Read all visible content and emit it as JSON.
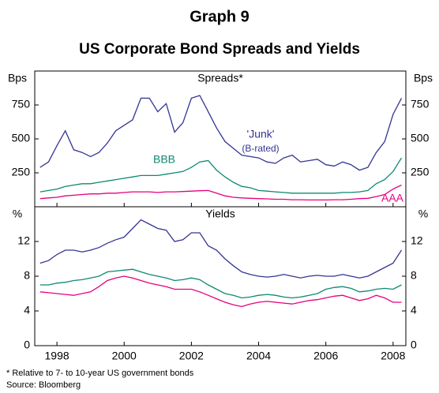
{
  "title": "Graph 9",
  "subtitle": "US Corporate Bond Spreads and Yields",
  "footnotes": [
    "* Relative to 7- to 10-year US government bonds",
    "Source: Bloomberg"
  ],
  "chart_data": [
    {
      "type": "line",
      "title": "Spreads*",
      "y_label": "Bps",
      "x": [
        1997.5,
        1997.75,
        1998,
        1998.25,
        1998.5,
        1998.75,
        1999,
        1999.25,
        1999.5,
        1999.75,
        2000,
        2000.25,
        2000.5,
        2000.75,
        2001,
        2001.25,
        2001.5,
        2001.75,
        2002,
        2002.25,
        2002.5,
        2002.75,
        2003,
        2003.25,
        2003.5,
        2003.75,
        2004,
        2004.25,
        2004.5,
        2004.75,
        2005,
        2005.25,
        2005.5,
        2005.75,
        2006,
        2006.25,
        2006.5,
        2006.75,
        2007,
        2007.25,
        2007.5,
        2007.75,
        2008,
        2008.25
      ],
      "xlim": [
        1997.34,
        2008.38
      ],
      "xticks": [
        1998,
        2000,
        2002,
        2004,
        2006,
        2008
      ],
      "ylim": [
        0,
        1000
      ],
      "yticks": [
        250,
        500,
        750
      ],
      "grid": false,
      "annotations": [
        "'Junk'",
        "(B-rated)",
        "BBB",
        "AAA"
      ],
      "series": [
        {
          "name": "'Junk'",
          "color": "#343494",
          "values": [
            290,
            330,
            450,
            560,
            420,
            400,
            370,
            400,
            470,
            560,
            600,
            640,
            800,
            800,
            700,
            760,
            550,
            620,
            800,
            820,
            700,
            580,
            480,
            430,
            380,
            370,
            360,
            330,
            320,
            360,
            380,
            330,
            340,
            350,
            310,
            300,
            330,
            310,
            270,
            290,
            400,
            480,
            680,
            800
          ]
        },
        {
          "name": "BBB",
          "color": "#0e8a70",
          "values": [
            110,
            120,
            130,
            150,
            160,
            170,
            170,
            180,
            190,
            200,
            210,
            220,
            230,
            230,
            230,
            240,
            250,
            260,
            290,
            330,
            340,
            270,
            220,
            180,
            150,
            140,
            120,
            115,
            110,
            105,
            100,
            100,
            100,
            100,
            100,
            100,
            105,
            105,
            110,
            120,
            170,
            200,
            260,
            360
          ]
        },
        {
          "name": "AAA",
          "color": "#e6007e",
          "values": [
            60,
            65,
            70,
            80,
            85,
            90,
            95,
            95,
            100,
            100,
            105,
            110,
            110,
            110,
            105,
            110,
            110,
            112,
            115,
            118,
            120,
            100,
            80,
            70,
            65,
            62,
            60,
            58,
            55,
            55,
            52,
            52,
            50,
            50,
            50,
            52,
            52,
            55,
            60,
            62,
            75,
            90,
            130,
            160
          ]
        }
      ]
    },
    {
      "type": "line",
      "title": "Yields",
      "y_label": "%",
      "x": [
        1997.5,
        1997.75,
        1998,
        1998.25,
        1998.5,
        1998.75,
        1999,
        1999.25,
        1999.5,
        1999.75,
        2000,
        2000.25,
        2000.5,
        2000.75,
        2001,
        2001.25,
        2001.5,
        2001.75,
        2002,
        2002.25,
        2002.5,
        2002.75,
        2003,
        2003.25,
        2003.5,
        2003.75,
        2004,
        2004.25,
        2004.5,
        2004.75,
        2005,
        2005.25,
        2005.5,
        2005.75,
        2006,
        2006.25,
        2006.5,
        2006.75,
        2007,
        2007.25,
        2007.5,
        2007.75,
        2008,
        2008.25
      ],
      "xlim": [
        1997.34,
        2008.38
      ],
      "xticks": [
        1998,
        2000,
        2002,
        2004,
        2006,
        2008
      ],
      "ylim": [
        0,
        16
      ],
      "yticks": [
        0,
        4,
        8,
        12
      ],
      "grid": false,
      "series": [
        {
          "color": "#343494",
          "values": [
            9.5,
            9.8,
            10.5,
            11,
            11,
            10.8,
            11,
            11.3,
            11.8,
            12.2,
            12.5,
            13.5,
            14.5,
            14,
            13.5,
            13.3,
            12,
            12.2,
            13,
            13,
            11.5,
            11,
            10,
            9.2,
            8.5,
            8.2,
            8,
            7.9,
            8,
            8.2,
            8,
            7.8,
            8,
            8.1,
            8,
            8,
            8.2,
            8,
            7.8,
            8,
            8.5,
            9,
            9.5,
            11
          ]
        },
        {
          "color": "#0e8a70",
          "values": [
            7,
            7,
            7.2,
            7.3,
            7.5,
            7.6,
            7.8,
            8,
            8.5,
            8.6,
            8.7,
            8.8,
            8.5,
            8.2,
            8,
            7.8,
            7.5,
            7.6,
            7.8,
            7.6,
            7,
            6.5,
            6,
            5.8,
            5.5,
            5.6,
            5.8,
            5.9,
            5.8,
            5.6,
            5.5,
            5.6,
            5.8,
            6,
            6.5,
            6.7,
            6.8,
            6.6,
            6.2,
            6.3,
            6.5,
            6.6,
            6.5,
            7
          ]
        },
        {
          "color": "#e6007e",
          "values": [
            6.2,
            6.1,
            6,
            5.9,
            5.8,
            6,
            6.2,
            6.8,
            7.5,
            7.8,
            8,
            7.8,
            7.5,
            7.2,
            7,
            6.8,
            6.5,
            6.5,
            6.5,
            6.2,
            5.8,
            5.4,
            5,
            4.7,
            4.5,
            4.8,
            5,
            5.1,
            5,
            4.9,
            4.8,
            5,
            5.2,
            5.3,
            5.5,
            5.7,
            5.8,
            5.5,
            5.2,
            5.4,
            5.8,
            5.5,
            5,
            5
          ]
        }
      ]
    }
  ]
}
